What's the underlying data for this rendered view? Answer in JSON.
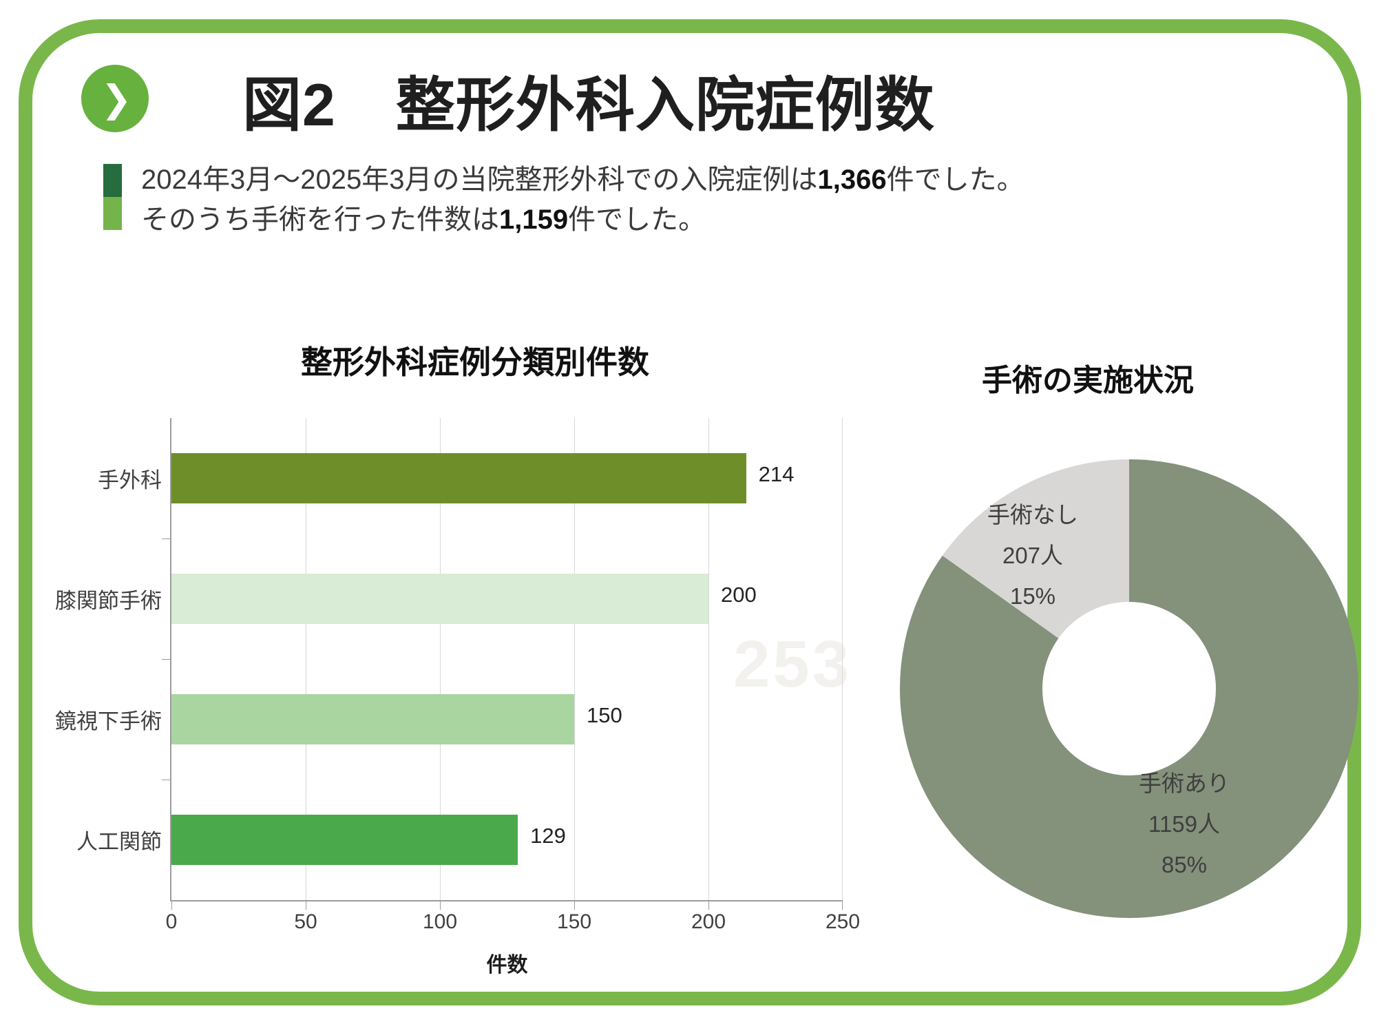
{
  "frame": {
    "border_color": "#7ab74b"
  },
  "header": {
    "icon": "chevron-right-icon",
    "icon_glyph": "❯",
    "icon_color": "#67b13e",
    "title": "図2　整形外科入院症例数"
  },
  "intro": {
    "accent_top_color": "#256c3f",
    "accent_bottom_color": "#74b44a",
    "line1": {
      "pre": "2024年3月～2025年3月の当院整形外科での入院症例は",
      "bold": "1,366",
      "post": "件でした。"
    },
    "line2": {
      "pre": "そのうち手術を行った件数は",
      "bold": "1,159",
      "post": "件でした。"
    }
  },
  "watermark": "253",
  "chart_data": [
    {
      "type": "bar",
      "orientation": "horizontal",
      "title": "整形外科症例分類別件数",
      "categories": [
        "手外科",
        "膝関節手術",
        "鏡視下手術",
        "人工関節"
      ],
      "values": [
        214,
        200,
        150,
        129
      ],
      "bar_colors": [
        "#6e8e29",
        "#d9ecd5",
        "#a9d5a0",
        "#4aa94b"
      ],
      "xlabel": "件数",
      "xlim": [
        0,
        250
      ],
      "xticks": [
        0,
        50,
        100,
        150,
        200,
        250
      ],
      "grid": true,
      "gridline_color": "#d8d8d8",
      "axis_color": "#9b9b9b"
    },
    {
      "type": "donut",
      "title": "手術の実施状況",
      "start_angle_deg": 0,
      "slices": [
        {
          "label": "手術あり",
          "count": "1159人",
          "percent": "85%",
          "value": 1159,
          "color": "#84917b"
        },
        {
          "label": "手術なし",
          "count": "207人",
          "percent": "15%",
          "value": 207,
          "color": "#d8d7d5"
        }
      ]
    }
  ]
}
